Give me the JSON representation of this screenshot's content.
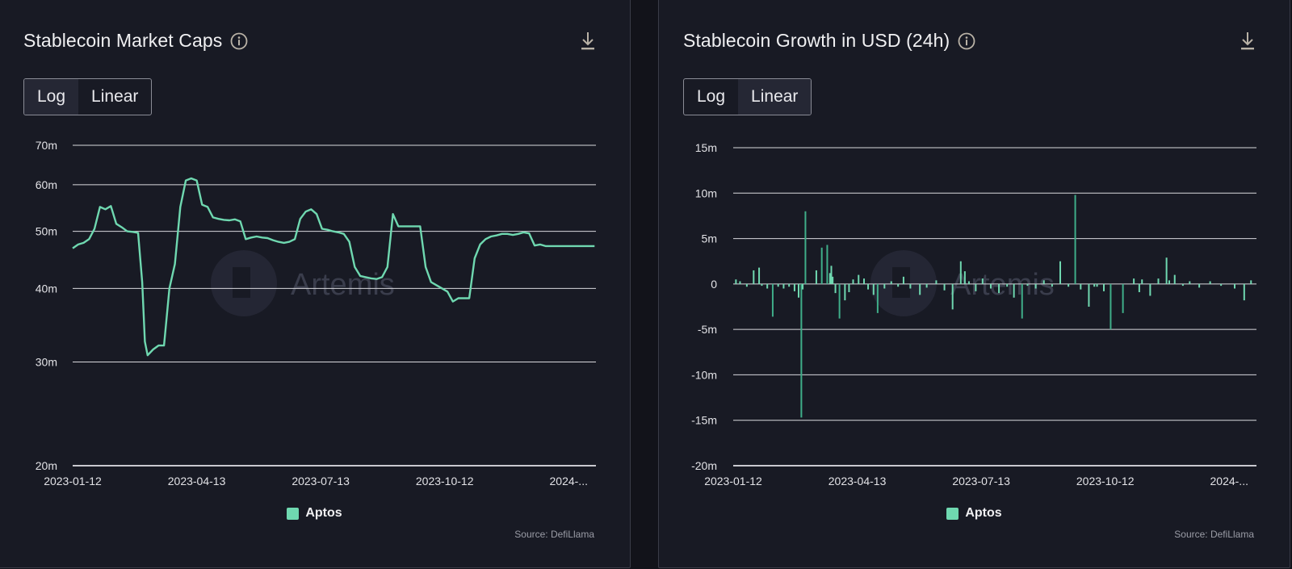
{
  "colors": {
    "series": "#6fd8b0",
    "bar": "#3fae89"
  },
  "panels": [
    {
      "title": "Stablecoin Market Caps",
      "toggle": {
        "options": [
          "Log",
          "Linear"
        ],
        "active": "Log"
      },
      "legend": "Aptos",
      "source": "Source: DefiLlama",
      "watermark": "Artemis",
      "icons": {
        "info": "info-icon",
        "download": "download-icon"
      }
    },
    {
      "title": "Stablecoin Growth in USD (24h)",
      "toggle": {
        "options": [
          "Log",
          "Linear"
        ],
        "active": "Linear"
      },
      "legend": "Aptos",
      "source": "Source: DefiLlama",
      "watermark": "Artemis",
      "icons": {
        "info": "info-icon",
        "download": "download-icon"
      }
    }
  ],
  "chart_data": [
    {
      "type": "line",
      "title": "Stablecoin Market Caps",
      "scale": "log",
      "ylim": [
        20,
        70
      ],
      "yticks": [
        20,
        30,
        40,
        50,
        60,
        70
      ],
      "ytick_labels": [
        "20m",
        "30m",
        "40m",
        "50m",
        "60m",
        "70m"
      ],
      "xlim": [
        "2023-01-12",
        "2024-01-31"
      ],
      "xtick_labels": [
        "2023-01-12",
        "2023-04-13",
        "2023-07-13",
        "2023-10-12",
        "2024-..."
      ],
      "xtick_dates": [
        "2023-01-12",
        "2023-04-13",
        "2023-07-13",
        "2023-10-12",
        "2024-01-11"
      ],
      "series": [
        {
          "name": "Aptos",
          "x": [
            "2023-01-12",
            "2023-01-16",
            "2023-01-20",
            "2023-01-24",
            "2023-01-28",
            "2023-02-01",
            "2023-02-05",
            "2023-02-09",
            "2023-02-13",
            "2023-02-17",
            "2023-02-21",
            "2023-02-25",
            "2023-03-01",
            "2023-03-04",
            "2023-03-06",
            "2023-03-08",
            "2023-03-12",
            "2023-03-16",
            "2023-03-20",
            "2023-03-24",
            "2023-03-28",
            "2023-04-01",
            "2023-04-05",
            "2023-04-09",
            "2023-04-13",
            "2023-04-17",
            "2023-04-21",
            "2023-04-25",
            "2023-04-29",
            "2023-05-03",
            "2023-05-07",
            "2023-05-11",
            "2023-05-15",
            "2023-05-19",
            "2023-05-23",
            "2023-05-27",
            "2023-05-31",
            "2023-06-04",
            "2023-06-08",
            "2023-06-12",
            "2023-06-16",
            "2023-06-20",
            "2023-06-24",
            "2023-06-28",
            "2023-07-02",
            "2023-07-06",
            "2023-07-10",
            "2023-07-14",
            "2023-07-18",
            "2023-07-22",
            "2023-07-26",
            "2023-07-30",
            "2023-08-03",
            "2023-08-07",
            "2023-08-11",
            "2023-08-15",
            "2023-08-19",
            "2023-08-23",
            "2023-08-27",
            "2023-08-31",
            "2023-09-04",
            "2023-09-08",
            "2023-09-12",
            "2023-09-16",
            "2023-09-20",
            "2023-09-24",
            "2023-09-28",
            "2023-10-02",
            "2023-10-06",
            "2023-10-10",
            "2023-10-14",
            "2023-10-18",
            "2023-10-22",
            "2023-10-26",
            "2023-10-30",
            "2023-11-03",
            "2023-11-07",
            "2023-11-11",
            "2023-11-15",
            "2023-11-19",
            "2023-11-23",
            "2023-11-27",
            "2023-12-01",
            "2023-12-05",
            "2023-12-09",
            "2023-12-13",
            "2023-12-17",
            "2023-12-21",
            "2023-12-25",
            "2023-12-29",
            "2024-01-02",
            "2024-01-06",
            "2024-01-10",
            "2024-01-14",
            "2024-01-18",
            "2024-01-22",
            "2024-01-26",
            "2024-01-30"
          ],
          "values": [
            46.8,
            47.5,
            47.8,
            48.5,
            50.5,
            55.0,
            54.5,
            55.2,
            51.5,
            50.8,
            50.0,
            49.9,
            49.7,
            41.0,
            32.5,
            30.8,
            31.5,
            32.0,
            32.0,
            40.0,
            44.0,
            55.0,
            61.0,
            61.5,
            61.0,
            55.5,
            55.0,
            52.8,
            52.5,
            52.3,
            52.2,
            52.4,
            52.0,
            48.5,
            48.8,
            49.0,
            48.8,
            48.7,
            48.3,
            48.0,
            47.8,
            48.0,
            48.5,
            52.5,
            54.0,
            54.5,
            53.5,
            50.5,
            50.3,
            50.0,
            49.8,
            49.5,
            48.0,
            43.5,
            42.0,
            41.8,
            41.6,
            41.5,
            41.8,
            43.5,
            53.5,
            51.0,
            51.0,
            51.0,
            51.0,
            51.0,
            43.5,
            41.0,
            40.5,
            40.0,
            39.5,
            38.0,
            38.5,
            38.5,
            38.5,
            45.0,
            47.5,
            48.5,
            49.0,
            49.2,
            49.5,
            49.5,
            49.3,
            49.5,
            49.8,
            49.6,
            47.3,
            47.5,
            47.2,
            47.2,
            47.2,
            47.2,
            47.2,
            47.2,
            47.2,
            47.2,
            47.2,
            47.2
          ]
        }
      ]
    },
    {
      "type": "bar",
      "title": "Stablecoin Growth in USD (24h)",
      "scale": "linear",
      "ylim": [
        -20,
        15
      ],
      "yticks": [
        -20,
        -15,
        -10,
        -5,
        0,
        5,
        10,
        15
      ],
      "ytick_labels": [
        "-20m",
        "-15m",
        "-10m",
        "-5m",
        "0",
        "5m",
        "10m",
        "15m"
      ],
      "xlim": [
        "2023-01-12",
        "2024-01-31"
      ],
      "xtick_labels": [
        "2023-01-12",
        "2023-04-13",
        "2023-07-13",
        "2023-10-12",
        "2024-..."
      ],
      "xtick_dates": [
        "2023-01-12",
        "2023-04-13",
        "2023-07-13",
        "2023-10-12",
        "2024-01-11"
      ],
      "series": [
        {
          "name": "Aptos",
          "x": [
            "2023-01-14",
            "2023-01-17",
            "2023-01-22",
            "2023-01-27",
            "2023-01-31",
            "2023-02-02",
            "2023-02-06",
            "2023-02-10",
            "2023-02-14",
            "2023-02-18",
            "2023-02-22",
            "2023-02-26",
            "2023-03-01",
            "2023-03-03",
            "2023-03-04",
            "2023-03-06",
            "2023-03-14",
            "2023-03-18",
            "2023-03-22",
            "2023-03-24",
            "2023-03-25",
            "2023-03-26",
            "2023-03-28",
            "2023-03-31",
            "2023-04-04",
            "2023-04-07",
            "2023-04-10",
            "2023-04-14",
            "2023-04-18",
            "2023-04-21",
            "2023-04-25",
            "2023-04-28",
            "2023-05-03",
            "2023-05-08",
            "2023-05-13",
            "2023-05-17",
            "2023-05-22",
            "2023-05-29",
            "2023-06-03",
            "2023-06-10",
            "2023-06-16",
            "2023-06-22",
            "2023-06-28",
            "2023-07-01",
            "2023-07-04",
            "2023-07-09",
            "2023-07-14",
            "2023-07-20",
            "2023-07-26",
            "2023-08-01",
            "2023-08-06",
            "2023-08-12",
            "2023-08-16",
            "2023-08-22",
            "2023-08-28",
            "2023-09-03",
            "2023-09-09",
            "2023-09-15",
            "2023-09-20",
            "2023-09-24",
            "2023-09-30",
            "2023-10-04",
            "2023-10-06",
            "2023-10-11",
            "2023-10-16",
            "2023-10-25",
            "2023-11-02",
            "2023-11-06",
            "2023-11-08",
            "2023-11-14",
            "2023-11-20",
            "2023-11-26",
            "2023-11-28",
            "2023-12-02",
            "2023-12-08",
            "2023-12-13",
            "2023-12-20",
            "2023-12-28",
            "2024-01-05",
            "2024-01-15",
            "2024-01-22",
            "2024-01-27"
          ],
          "values": [
            0.5,
            0.3,
            -0.3,
            1.5,
            1.8,
            -0.2,
            -0.5,
            -3.6,
            -0.3,
            -0.5,
            -0.3,
            -0.8,
            -1.5,
            -14.7,
            -0.6,
            8.0,
            1.5,
            4.0,
            4.3,
            1.2,
            2.0,
            0.8,
            -1.0,
            -3.8,
            -1.8,
            -0.9,
            0.5,
            1.0,
            0.6,
            -0.6,
            -1.2,
            -3.2,
            -0.5,
            0.3,
            -0.3,
            0.8,
            -0.5,
            -1.2,
            -0.4,
            0.4,
            -0.7,
            -2.8,
            2.5,
            1.4,
            0.3,
            -0.8,
            0.6,
            -0.5,
            -1.0,
            -0.3,
            -1.5,
            -3.8,
            -0.2,
            -0.5,
            0.4,
            -0.3,
            2.5,
            -0.3,
            9.8,
            -0.6,
            -2.5,
            -0.3,
            -0.3,
            -0.8,
            -5.0,
            -3.2,
            0.6,
            -0.9,
            0.5,
            -1.3,
            0.6,
            2.9,
            0.4,
            1.0,
            -0.2,
            0.3,
            -0.4,
            0.3,
            -0.2,
            -0.5,
            -1.8,
            0.4
          ]
        }
      ]
    }
  ]
}
